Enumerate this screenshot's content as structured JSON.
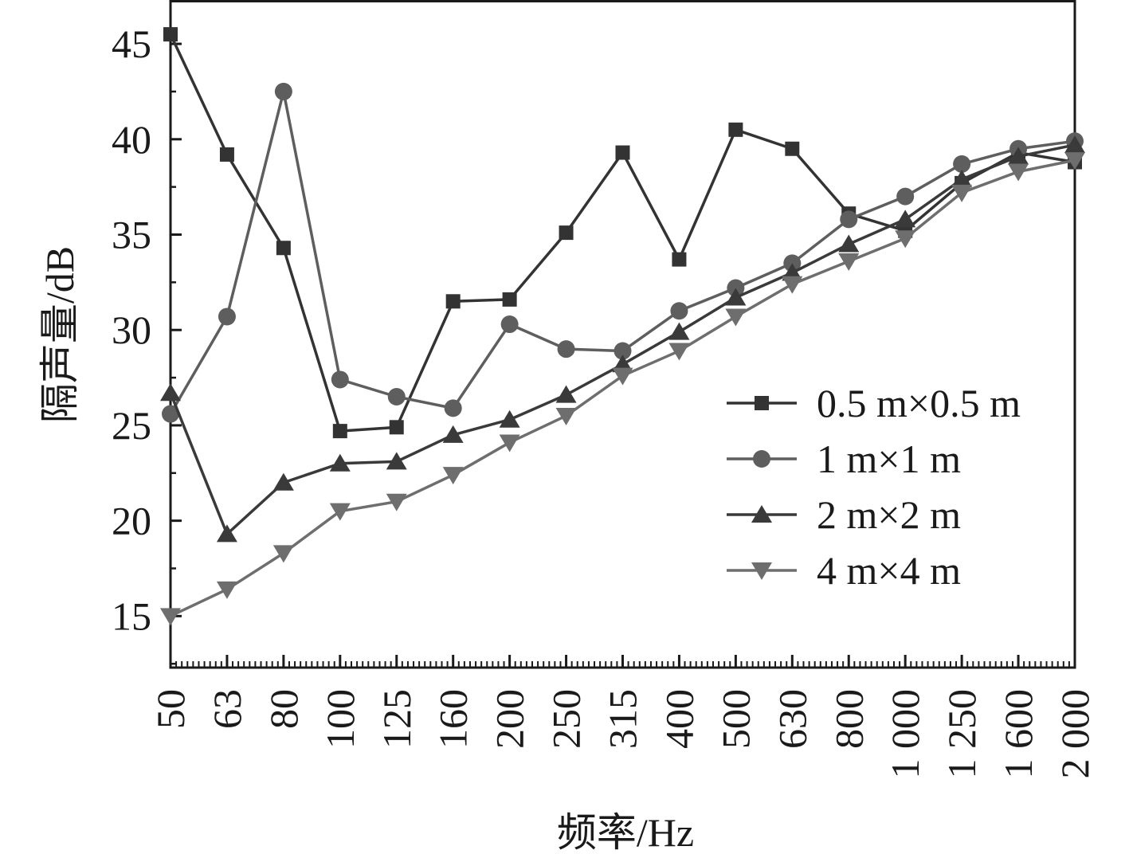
{
  "chart_data": {
    "type": "line",
    "title": "",
    "xlabel": "频率/Hz",
    "ylabel": "隔声量/dB",
    "categories": [
      "50",
      "63",
      "80",
      "100",
      "125",
      "160",
      "200",
      "250",
      "315",
      "400",
      "500",
      "630",
      "800",
      "1 000",
      "1 250",
      "1 600",
      "2 000"
    ],
    "ylim": [
      12.3,
      47.3
    ],
    "yticks": [
      15,
      20,
      25,
      30,
      35,
      40,
      45
    ],
    "grid": false,
    "legend_position": "right",
    "series": [
      {
        "name": "0.5 m×0.5 m",
        "marker": "square",
        "color": "#333333",
        "values": [
          45.5,
          39.2,
          34.3,
          24.7,
          24.9,
          31.5,
          31.6,
          35.1,
          39.3,
          33.7,
          40.5,
          39.5,
          36.1,
          35.2,
          37.7,
          39.3,
          38.8
        ]
      },
      {
        "name": "1 m×1 m",
        "marker": "circle",
        "color": "#5e5e5e",
        "values": [
          25.6,
          30.7,
          42.5,
          27.4,
          26.5,
          25.9,
          30.3,
          29.0,
          28.9,
          31.0,
          32.2,
          33.5,
          35.8,
          37.0,
          38.7,
          39.5,
          39.9
        ]
      },
      {
        "name": "2 m×2 m",
        "marker": "triangle-up",
        "color": "#3a3a3a",
        "values": [
          26.7,
          19.3,
          22.0,
          23.0,
          23.1,
          24.5,
          25.3,
          26.6,
          28.2,
          29.9,
          31.7,
          33.0,
          34.5,
          35.8,
          37.9,
          39.1,
          39.7
        ]
      },
      {
        "name": "4 m×4 m",
        "marker": "triangle-down",
        "color": "#6e6e6e",
        "values": [
          15.0,
          16.4,
          18.3,
          20.5,
          21.0,
          22.4,
          24.1,
          25.5,
          27.6,
          28.9,
          30.7,
          32.4,
          33.6,
          34.8,
          37.2,
          38.3,
          38.9
        ]
      }
    ]
  }
}
